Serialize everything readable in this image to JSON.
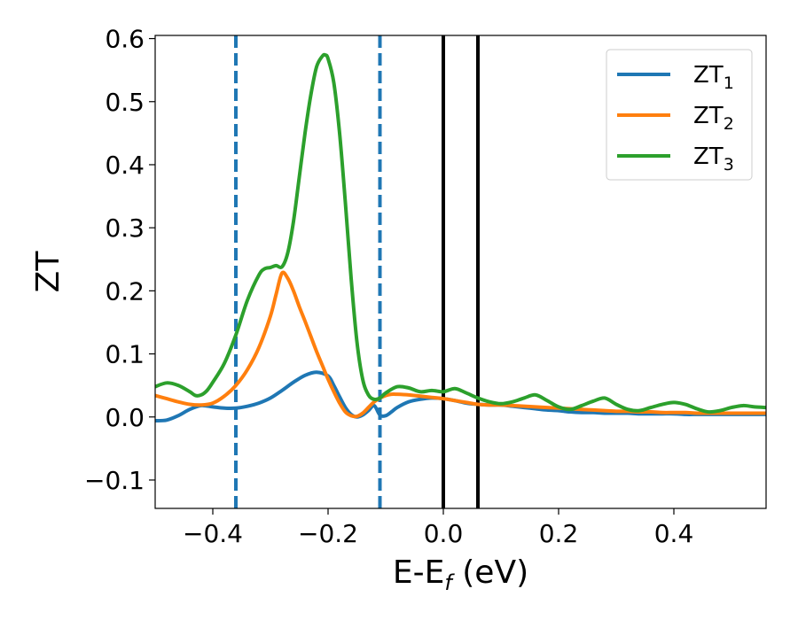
{
  "chart_data": {
    "type": "line",
    "xlabel": "E-E",
    "xlabel_sub": "f",
    "xlabel_suffix": " (eV)",
    "ylabel": "ZT",
    "xlim": [
      -0.5,
      0.56
    ],
    "ylim": [
      -0.145,
      0.605
    ],
    "grid": false,
    "legend_position": "top-right",
    "x_ticks": [
      {
        "value": -0.4,
        "label": "−0.4"
      },
      {
        "value": -0.2,
        "label": "−0.2"
      },
      {
        "value": 0.0,
        "label": "0.0"
      },
      {
        "value": 0.2,
        "label": "0.2"
      },
      {
        "value": 0.4,
        "label": "0.4"
      }
    ],
    "y_ticks": [
      {
        "value": -0.1,
        "label": "−0.1"
      },
      {
        "value": 0.0,
        "label": "0.0"
      },
      {
        "value": 0.1,
        "label": "0.1"
      },
      {
        "value": 0.2,
        "label": "0.2"
      },
      {
        "value": 0.3,
        "label": "0.3"
      },
      {
        "value": 0.4,
        "label": "0.4"
      },
      {
        "value": 0.5,
        "label": "0.5"
      },
      {
        "value": 0.6,
        "label": "0.6"
      }
    ],
    "vertical_lines": [
      {
        "x": -0.36,
        "style": "dashed",
        "color": "#1f77b4"
      },
      {
        "x": -0.11,
        "style": "dashed",
        "color": "#1f77b4"
      },
      {
        "x": 0.0,
        "style": "solid",
        "color": "#000000"
      },
      {
        "x": 0.06,
        "style": "solid",
        "color": "#000000"
      }
    ],
    "series": [
      {
        "name": "ZT",
        "name_sub": "1",
        "color": "#1f77b4",
        "x": [
          -0.5,
          -0.48,
          -0.46,
          -0.44,
          -0.42,
          -0.4,
          -0.38,
          -0.36,
          -0.34,
          -0.32,
          -0.3,
          -0.28,
          -0.26,
          -0.24,
          -0.22,
          -0.2,
          -0.19,
          -0.18,
          -0.17,
          -0.16,
          -0.15,
          -0.14,
          -0.13,
          -0.12,
          -0.11,
          -0.1,
          -0.09,
          -0.08,
          -0.06,
          -0.04,
          -0.02,
          0.0,
          0.02,
          0.04,
          0.06,
          0.08,
          0.1,
          0.12,
          0.14,
          0.16,
          0.18,
          0.2,
          0.22,
          0.24,
          0.26,
          0.28,
          0.3,
          0.32,
          0.34,
          0.36,
          0.38,
          0.4,
          0.42,
          0.44,
          0.46,
          0.48,
          0.5,
          0.52,
          0.54,
          0.56
        ],
        "values": [
          -0.006,
          -0.005,
          0.002,
          0.012,
          0.018,
          0.016,
          0.014,
          0.014,
          0.017,
          0.022,
          0.03,
          0.042,
          0.055,
          0.066,
          0.071,
          0.065,
          0.05,
          0.032,
          0.015,
          0.004,
          0.0,
          0.003,
          0.01,
          0.018,
          0.003,
          0.002,
          0.008,
          0.015,
          0.024,
          0.028,
          0.03,
          0.029,
          0.026,
          0.022,
          0.02,
          0.019,
          0.019,
          0.017,
          0.015,
          0.013,
          0.011,
          0.01,
          0.008,
          0.007,
          0.007,
          0.006,
          0.006,
          0.006,
          0.005,
          0.005,
          0.005,
          0.005,
          0.004,
          0.004,
          0.004,
          0.004,
          0.004,
          0.004,
          0.004,
          0.004
        ]
      },
      {
        "name": "ZT",
        "name_sub": "2",
        "color": "#ff7f0e",
        "x": [
          -0.5,
          -0.48,
          -0.46,
          -0.44,
          -0.42,
          -0.4,
          -0.38,
          -0.36,
          -0.34,
          -0.32,
          -0.3,
          -0.29,
          -0.28,
          -0.27,
          -0.26,
          -0.25,
          -0.24,
          -0.23,
          -0.22,
          -0.21,
          -0.2,
          -0.19,
          -0.18,
          -0.17,
          -0.16,
          -0.15,
          -0.14,
          -0.13,
          -0.12,
          -0.11,
          -0.1,
          -0.09,
          -0.08,
          -0.06,
          -0.04,
          -0.02,
          0.0,
          0.02,
          0.04,
          0.06,
          0.08,
          0.1,
          0.12,
          0.14,
          0.16,
          0.18,
          0.2,
          0.22,
          0.24,
          0.26,
          0.28,
          0.3,
          0.32,
          0.34,
          0.36,
          0.38,
          0.4,
          0.42,
          0.44,
          0.46,
          0.48,
          0.5,
          0.52,
          0.54,
          0.56
        ],
        "values": [
          0.034,
          0.029,
          0.024,
          0.02,
          0.019,
          0.022,
          0.033,
          0.05,
          0.075,
          0.11,
          0.16,
          0.195,
          0.228,
          0.22,
          0.2,
          0.175,
          0.152,
          0.128,
          0.104,
          0.082,
          0.06,
          0.04,
          0.022,
          0.008,
          0.002,
          0.001,
          0.006,
          0.015,
          0.024,
          0.03,
          0.034,
          0.036,
          0.036,
          0.035,
          0.033,
          0.031,
          0.029,
          0.026,
          0.023,
          0.02,
          0.019,
          0.019,
          0.018,
          0.017,
          0.016,
          0.015,
          0.014,
          0.013,
          0.012,
          0.011,
          0.01,
          0.009,
          0.009,
          0.008,
          0.008,
          0.007,
          0.007,
          0.007,
          0.006,
          0.006,
          0.006,
          0.006,
          0.006,
          0.006,
          0.006
        ]
      },
      {
        "name": "ZT",
        "name_sub": "3",
        "color": "#2ca02c",
        "x": [
          -0.5,
          -0.48,
          -0.46,
          -0.44,
          -0.43,
          -0.42,
          -0.41,
          -0.4,
          -0.38,
          -0.36,
          -0.34,
          -0.32,
          -0.31,
          -0.3,
          -0.29,
          -0.28,
          -0.27,
          -0.26,
          -0.25,
          -0.24,
          -0.23,
          -0.22,
          -0.21,
          -0.205,
          -0.2,
          -0.19,
          -0.18,
          -0.17,
          -0.16,
          -0.15,
          -0.14,
          -0.13,
          -0.12,
          -0.11,
          -0.1,
          -0.08,
          -0.06,
          -0.04,
          -0.02,
          0.0,
          0.02,
          0.04,
          0.06,
          0.08,
          0.1,
          0.12,
          0.14,
          0.16,
          0.18,
          0.2,
          0.22,
          0.24,
          0.26,
          0.28,
          0.3,
          0.32,
          0.34,
          0.36,
          0.38,
          0.4,
          0.42,
          0.44,
          0.46,
          0.48,
          0.5,
          0.52,
          0.54,
          0.56
        ],
        "values": [
          0.048,
          0.054,
          0.05,
          0.04,
          0.034,
          0.035,
          0.042,
          0.055,
          0.085,
          0.13,
          0.185,
          0.225,
          0.235,
          0.237,
          0.24,
          0.238,
          0.26,
          0.31,
          0.38,
          0.45,
          0.51,
          0.555,
          0.572,
          0.574,
          0.568,
          0.53,
          0.45,
          0.34,
          0.22,
          0.12,
          0.06,
          0.035,
          0.028,
          0.03,
          0.038,
          0.048,
          0.046,
          0.04,
          0.042,
          0.04,
          0.045,
          0.038,
          0.03,
          0.024,
          0.021,
          0.024,
          0.03,
          0.035,
          0.026,
          0.016,
          0.012,
          0.018,
          0.025,
          0.03,
          0.02,
          0.012,
          0.01,
          0.015,
          0.02,
          0.023,
          0.02,
          0.013,
          0.008,
          0.01,
          0.015,
          0.018,
          0.016,
          0.015
        ]
      }
    ]
  }
}
